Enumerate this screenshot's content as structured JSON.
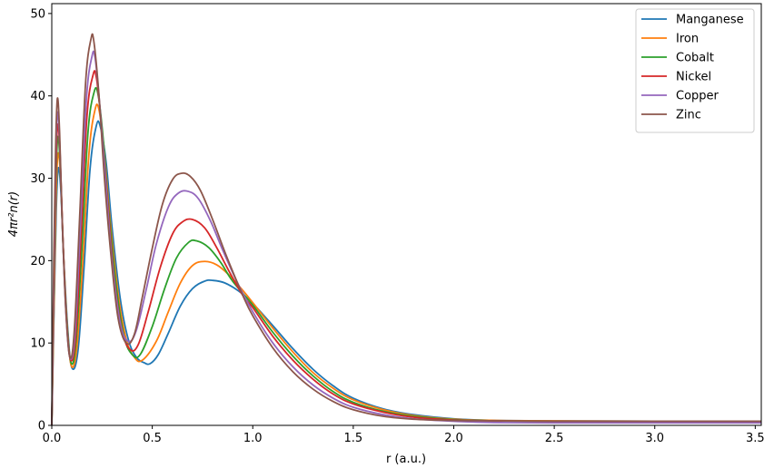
{
  "chart_data": {
    "type": "line",
    "title": "",
    "xlabel": "r (a.u.)",
    "ylabel": "4πr²n(r)",
    "xlim": [
      0,
      3.53
    ],
    "ylim": [
      0,
      51.2
    ],
    "xticks": [
      0.0,
      0.5,
      1.0,
      1.5,
      2.0,
      2.5,
      3.0,
      3.5
    ],
    "xtick_labels": [
      "0.0",
      "0.5",
      "1.0",
      "1.5",
      "2.0",
      "2.5",
      "3.0",
      "3.5"
    ],
    "yticks": [
      0,
      10,
      20,
      30,
      40,
      50
    ],
    "ytick_labels": [
      "0",
      "10",
      "20",
      "30",
      "40",
      "50"
    ],
    "grid": false,
    "legend_position": "top-right",
    "series": [
      {
        "name": "Manganese",
        "color": "#1f77b4",
        "x": [
          0.0,
          0.012,
          0.022,
          0.032,
          0.045,
          0.06,
          0.08,
          0.1,
          0.13,
          0.16,
          0.19,
          0.22,
          0.24,
          0.27,
          0.3,
          0.34,
          0.38,
          0.42,
          0.46,
          0.49,
          0.53,
          0.58,
          0.64,
          0.7,
          0.76,
          0.8,
          0.86,
          0.93,
          1.0,
          1.1,
          1.2,
          1.3,
          1.4,
          1.5,
          1.65,
          1.8,
          2.0,
          2.2,
          2.5,
          3.0,
          3.53
        ],
        "y": [
          0,
          15.0,
          26.0,
          31.2,
          28.5,
          20.0,
          11.5,
          7.0,
          9.0,
          19.0,
          31.0,
          36.2,
          36.4,
          32.0,
          24.0,
          15.5,
          10.5,
          8.3,
          7.6,
          7.5,
          8.6,
          11.2,
          14.5,
          16.6,
          17.5,
          17.6,
          17.3,
          16.3,
          14.8,
          12.1,
          9.3,
          6.8,
          4.8,
          3.3,
          2.0,
          1.3,
          0.8,
          0.6,
          0.55,
          0.5,
          0.5
        ]
      },
      {
        "name": "Iron",
        "color": "#ff7f0e",
        "x": [
          0.0,
          0.012,
          0.021,
          0.031,
          0.044,
          0.058,
          0.077,
          0.098,
          0.125,
          0.155,
          0.185,
          0.215,
          0.235,
          0.26,
          0.29,
          0.33,
          0.37,
          0.41,
          0.45,
          0.52,
          0.58,
          0.64,
          0.7,
          0.76,
          0.82,
          0.88,
          0.95,
          1.0,
          1.1,
          1.2,
          1.3,
          1.4,
          1.5,
          1.65,
          1.8,
          2.0,
          2.2,
          2.5,
          3.0,
          3.53
        ],
        "y": [
          0,
          16.0,
          27.5,
          33.0,
          30.0,
          21.0,
          12.0,
          7.2,
          9.5,
          20.0,
          33.0,
          38.3,
          38.3,
          33.5,
          25.0,
          16.0,
          10.5,
          8.3,
          7.9,
          10.2,
          13.8,
          17.3,
          19.4,
          19.9,
          19.5,
          18.3,
          16.4,
          14.9,
          11.8,
          8.9,
          6.4,
          4.5,
          3.1,
          1.9,
          1.2,
          0.75,
          0.6,
          0.55,
          0.5,
          0.5
        ]
      },
      {
        "name": "Cobalt",
        "color": "#2ca02c",
        "x": [
          0.0,
          0.011,
          0.02,
          0.03,
          0.042,
          0.056,
          0.075,
          0.096,
          0.12,
          0.15,
          0.18,
          0.21,
          0.23,
          0.255,
          0.28,
          0.32,
          0.36,
          0.4,
          0.44,
          0.5,
          0.56,
          0.62,
          0.68,
          0.72,
          0.78,
          0.84,
          0.9,
          1.0,
          1.1,
          1.2,
          1.3,
          1.4,
          1.5,
          1.65,
          1.8,
          2.0,
          2.2,
          2.5,
          3.0,
          3.53
        ],
        "y": [
          0,
          17.0,
          29.0,
          35.0,
          31.5,
          22.0,
          12.5,
          7.6,
          10.0,
          21.5,
          35.5,
          40.4,
          40.2,
          35.0,
          27.0,
          17.0,
          10.8,
          8.6,
          8.6,
          12.0,
          16.5,
          20.3,
          22.2,
          22.4,
          21.6,
          19.8,
          17.5,
          14.6,
          11.3,
          8.4,
          6.0,
          4.1,
          2.8,
          1.7,
          1.1,
          0.7,
          0.55,
          0.5,
          0.5,
          0.5
        ]
      },
      {
        "name": "Nickel",
        "color": "#d62728",
        "x": [
          0.0,
          0.011,
          0.02,
          0.029,
          0.041,
          0.055,
          0.073,
          0.093,
          0.118,
          0.145,
          0.175,
          0.205,
          0.222,
          0.245,
          0.275,
          0.31,
          0.35,
          0.39,
          0.43,
          0.48,
          0.54,
          0.6,
          0.65,
          0.7,
          0.76,
          0.82,
          0.88,
          0.95,
          1.0,
          1.1,
          1.2,
          1.3,
          1.4,
          1.5,
          1.65,
          1.8,
          2.0,
          2.2,
          2.5,
          3.0,
          3.53
        ],
        "y": [
          0,
          18.0,
          30.5,
          36.5,
          33.0,
          23.0,
          13.0,
          8.0,
          10.5,
          22.5,
          37.5,
          42.5,
          42.2,
          37.0,
          28.0,
          18.0,
          11.5,
          9.2,
          9.8,
          13.8,
          19.2,
          23.2,
          24.7,
          25.0,
          24.0,
          21.6,
          18.8,
          15.8,
          14.3,
          10.8,
          7.9,
          5.6,
          3.8,
          2.6,
          1.6,
          1.0,
          0.65,
          0.55,
          0.5,
          0.5,
          0.5
        ]
      },
      {
        "name": "Copper",
        "color": "#9467bd",
        "x": [
          0.0,
          0.011,
          0.019,
          0.028,
          0.04,
          0.053,
          0.071,
          0.091,
          0.115,
          0.142,
          0.172,
          0.2,
          0.216,
          0.24,
          0.27,
          0.3,
          0.34,
          0.38,
          0.42,
          0.47,
          0.52,
          0.58,
          0.63,
          0.68,
          0.73,
          0.79,
          0.85,
          0.92,
          1.0,
          1.1,
          1.2,
          1.3,
          1.4,
          1.5,
          1.65,
          1.8,
          2.0,
          2.2,
          2.5,
          3.0,
          3.53
        ],
        "y": [
          0,
          19.0,
          32.0,
          38.0,
          34.0,
          24.0,
          13.5,
          8.2,
          11.0,
          24.0,
          39.5,
          44.8,
          44.5,
          38.5,
          29.0,
          20.0,
          12.5,
          10.2,
          11.5,
          16.5,
          22.0,
          26.5,
          28.2,
          28.4,
          27.5,
          24.8,
          21.3,
          17.5,
          13.8,
          10.0,
          7.1,
          4.9,
          3.3,
          2.2,
          1.3,
          0.8,
          0.5,
          0.35,
          0.3,
          0.3,
          0.3
        ]
      },
      {
        "name": "Zinc",
        "color": "#8c564b",
        "x": [
          0.0,
          0.01,
          0.019,
          0.028,
          0.039,
          0.052,
          0.07,
          0.09,
          0.112,
          0.14,
          0.168,
          0.195,
          0.21,
          0.235,
          0.262,
          0.295,
          0.33,
          0.37,
          0.41,
          0.45,
          0.5,
          0.55,
          0.6,
          0.645,
          0.69,
          0.74,
          0.8,
          0.87,
          0.95,
          1.0,
          1.1,
          1.2,
          1.3,
          1.4,
          1.5,
          1.65,
          1.8,
          2.0,
          2.2,
          2.5,
          3.0,
          3.53
        ],
        "y": [
          0,
          20.0,
          33.5,
          39.7,
          35.5,
          25.0,
          14.0,
          8.3,
          11.5,
          26.0,
          41.5,
          46.9,
          46.5,
          40.0,
          30.0,
          20.5,
          13.0,
          10.0,
          11.0,
          15.5,
          21.5,
          26.8,
          29.8,
          30.6,
          30.2,
          28.5,
          25.0,
          20.5,
          15.8,
          13.3,
          9.4,
          6.5,
          4.4,
          2.9,
          1.9,
          1.1,
          0.75,
          0.6,
          0.55,
          0.5,
          0.5,
          0.5
        ]
      }
    ]
  }
}
